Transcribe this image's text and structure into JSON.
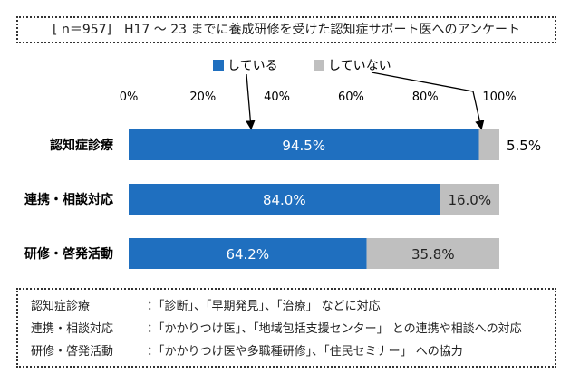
{
  "chart_data": {
    "type": "bar",
    "orientation": "horizontal",
    "stacked": true,
    "title": "[ n＝957]　H17 ～ 23 までに養成研修を受けた認知症サポート医へのアンケート",
    "categories": [
      "認知症診療",
      "連携・相談対応",
      "研修・啓発活動"
    ],
    "series": [
      {
        "name": "している",
        "values": [
          94.5,
          84.0,
          64.2
        ],
        "labels": [
          "94.5%",
          "84.0%",
          "64.2%"
        ],
        "color": "#1f6fbf"
      },
      {
        "name": "していない",
        "values": [
          5.5,
          16.0,
          35.8
        ],
        "labels": [
          "5.5%",
          "16.0%",
          "35.8%"
        ],
        "color": "#bfbfbf"
      }
    ],
    "xlim": [
      0,
      100
    ],
    "xticks": [
      "0%",
      "20%",
      "40%",
      "60%",
      "80%",
      "100%"
    ],
    "legend_position": "top",
    "grid": false
  },
  "notes": [
    {
      "label": "認知症診療",
      "text": "：「診断」、「早期発見」、「治療」 などに対応"
    },
    {
      "label": "連携・相談対応",
      "text": "：「かかりつけ医」、「地域包括支援センター」 との連携や相談への対応"
    },
    {
      "label": "研修・啓発活動",
      "text": "：「かかりつけ医や多職種研修」、「住民セミナー」 への協力"
    }
  ]
}
